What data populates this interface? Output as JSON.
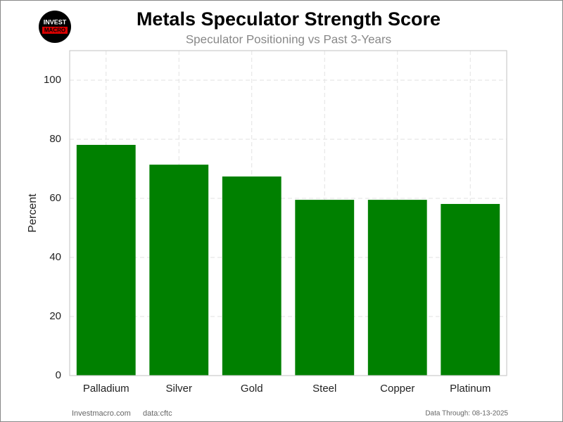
{
  "chart_data": {
    "type": "bar",
    "title": "Metals Speculator Strength Score",
    "subtitle": "Speculator Positioning vs Past 3-Years",
    "logo_text": "INVEST",
    "logo_subtext": "MACRO",
    "y_label": "Percent",
    "categories": [
      "Palladium",
      "Silver",
      "Gold",
      "Steel",
      "Copper",
      "Platinum"
    ],
    "values": [
      78.1,
      71.4,
      67.4,
      59.5,
      59.5,
      58.1
    ],
    "color": "#008000",
    "ylim": [
      0,
      110
    ],
    "yticks": [
      0,
      20,
      40,
      60,
      80,
      100
    ],
    "grid": true,
    "source": "Investmacro.com",
    "data_source": "data:cftc",
    "note": "Data Through: 08-13-2025"
  }
}
